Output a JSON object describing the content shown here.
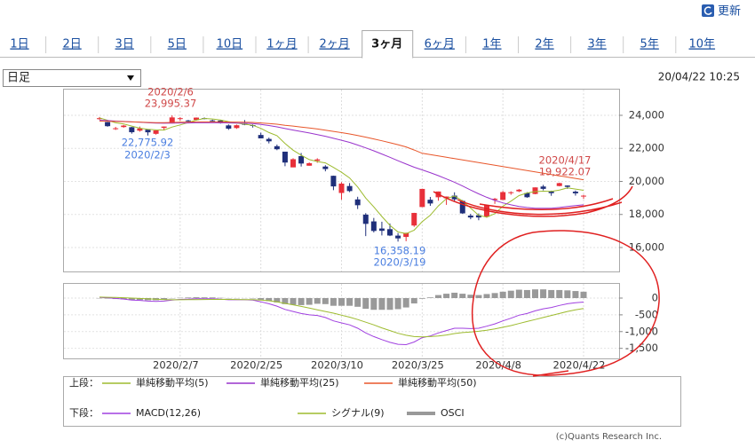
{
  "toolbar": {
    "refresh": "更新"
  },
  "tabs": [
    {
      "label": "1日"
    },
    {
      "label": "2日"
    },
    {
      "label": "3日"
    },
    {
      "label": "5日"
    },
    {
      "label": "10日"
    },
    {
      "label": "1ヶ月"
    },
    {
      "label": "2ヶ月"
    },
    {
      "label": "3ヶ月",
      "selected": true
    },
    {
      "label": "6ヶ月"
    },
    {
      "label": "1年"
    },
    {
      "label": "2年"
    },
    {
      "label": "3年"
    },
    {
      "label": "5年"
    },
    {
      "label": "10年"
    }
  ],
  "period_select": "日足",
  "timestamp": "20/04/22 10:25",
  "chart_data": [
    {
      "type": "candlestick",
      "up_color": "#e8303a",
      "down_color": "#1f2f7a",
      "open": [
        23770,
        23590,
        23180,
        23290,
        23280,
        23070,
        23130,
        22880,
        23240,
        23510,
        23820,
        23690,
        23720,
        23830,
        23690,
        23680,
        23390,
        23230,
        23480,
        23410,
        22810,
        22570,
        22130,
        21800,
        20850,
        21530,
        20950,
        21250,
        20900,
        20340,
        19300,
        19720,
        18910,
        17990,
        17580,
        17150,
        17110,
        16720,
        16640,
        17330,
        18450,
        18890,
        19040,
        18980,
        19140,
        18820,
        17930,
        17950,
        17860,
        18880,
        18880,
        19310,
        19400,
        19300,
        19240,
        19690,
        19390,
        19720,
        19750,
        19380,
        19120
      ],
      "high": [
        23900,
        23600,
        23300,
        23420,
        23300,
        23320,
        23130,
        23090,
        23330,
        23995.37,
        23890,
        23720,
        23870,
        23870,
        23740,
        23700,
        23450,
        23440,
        23710,
        23450,
        22950,
        22650,
        22230,
        21800,
        21400,
        21720,
        21150,
        21400,
        20980,
        20350,
        19950,
        19900,
        19070,
        18080,
        17790,
        17560,
        17450,
        16870,
        16900,
        18100,
        19560,
        19060,
        19390,
        19090,
        19340,
        18870,
        18040,
        18060,
        18600,
        19000,
        19420,
        19400,
        19540,
        19350,
        19640,
        19790,
        19440,
        19922.07,
        19760,
        19450,
        19190
      ],
      "low": [
        23730,
        23310,
        23115,
        23250,
        22890,
        23010,
        22775.92,
        22830,
        23110,
        23510,
        23660,
        23580,
        23680,
        23760,
        23600,
        23500,
        23120,
        23180,
        23400,
        23260,
        22600,
        22300,
        21890,
        20920,
        20850,
        20900,
        20950,
        21130,
        20610,
        19470,
        18890,
        19350,
        18330,
        16690,
        16910,
        16730,
        16690,
        16358.19,
        16380,
        17250,
        18450,
        18520,
        18830,
        18580,
        18800,
        18040,
        17710,
        17650,
        17800,
        18640,
        18880,
        19190,
        19350,
        19010,
        19220,
        19460,
        19130,
        19700,
        19550,
        19140,
        18940
      ],
      "close": [
        23827,
        23343,
        23216,
        23379,
        22977,
        23205,
        22972,
        23085,
        23320,
        23873,
        23828,
        23686,
        23861,
        23828,
        23688,
        23523,
        23194,
        23400,
        23479,
        23386,
        22605,
        22426,
        21948,
        21142,
        21344,
        21082,
        21100,
        21329,
        20749,
        19698,
        19867,
        19416,
        18559,
        17431,
        17002,
        17011,
        16726,
        16552,
        16887,
        18092,
        19546,
        18664,
        19389,
        19084,
        18917,
        18065,
        17818,
        17820,
        18576,
        18950,
        19353,
        19345,
        19498,
        19043,
        19638,
        19550,
        19290,
        19897,
        19669,
        19280,
        19137
      ],
      "series": [
        {
          "name": "単純移動平均(5)",
          "color": "#9dbb2e",
          "values": [
            23850,
            23700,
            23550,
            23480,
            23350,
            23220,
            23150,
            23120,
            23110,
            23290,
            23420,
            23560,
            23710,
            23810,
            23780,
            23720,
            23620,
            23530,
            23460,
            23400,
            23210,
            22960,
            22770,
            22300,
            21890,
            21590,
            21320,
            21200,
            21120,
            20850,
            20550,
            20210,
            19660,
            18990,
            18460,
            17880,
            17340,
            16940,
            16840,
            17050,
            17560,
            17950,
            18520,
            18960,
            19120,
            18820,
            18390,
            17950,
            17840,
            18050,
            18500,
            18810,
            19140,
            19300,
            19380,
            19410,
            19400,
            19480,
            19610,
            19540,
            19460
          ]
        },
        {
          "name": "単純移動平均(25)",
          "color": "#9933cc",
          "values": [
            23700,
            23680,
            23650,
            23630,
            23600,
            23580,
            23550,
            23530,
            23520,
            23530,
            23540,
            23540,
            23550,
            23550,
            23550,
            23550,
            23540,
            23530,
            23520,
            23500,
            23450,
            23380,
            23300,
            23200,
            23110,
            23020,
            22930,
            22830,
            22730,
            22610,
            22490,
            22360,
            22200,
            22030,
            21850,
            21660,
            21460,
            21250,
            21050,
            20860,
            20700,
            20530,
            20350,
            20150,
            19950,
            19720,
            19480,
            19250,
            19040,
            18850,
            18700,
            18580,
            18480,
            18420,
            18380,
            18370,
            18380,
            18420,
            18480,
            18540,
            18580
          ]
        },
        {
          "name": "単純移動平均(50)",
          "color": "#e8562a",
          "values": [
            23650,
            23640,
            23630,
            23620,
            23600,
            23590,
            23570,
            23560,
            23560,
            23570,
            23580,
            23590,
            23600,
            23600,
            23600,
            23600,
            23590,
            23590,
            23580,
            23570,
            23540,
            23500,
            23460,
            23400,
            23350,
            23290,
            23230,
            23170,
            23100,
            23030,
            22950,
            22870,
            22780,
            22680,
            22570,
            22460,
            22340,
            22220,
            22090,
            21900,
            21700,
            21620,
            21540,
            21460,
            21380,
            21300,
            21220,
            21140,
            21060,
            20980,
            20900,
            20820,
            20740,
            20660,
            20580,
            20500,
            20420,
            20340,
            20260,
            20180,
            20100
          ]
        }
      ],
      "ylim": [
        14550,
        25610
      ],
      "yticks": [
        {
          "value": 16000,
          "label": "16,000"
        },
        {
          "value": 18000,
          "label": "18,000"
        },
        {
          "value": 20000,
          "label": "20,000"
        },
        {
          "value": 22000,
          "label": "22,000"
        },
        {
          "value": 24000,
          "label": "24,000"
        }
      ],
      "grid": true,
      "annotations": [
        {
          "date": "2020/2/6",
          "label": "23,995.37",
          "color": "#d04848"
        },
        {
          "date": "2020/2/3",
          "label": "22,775.92",
          "color": "#4a7ee0"
        },
        {
          "date": "2020/3/19",
          "label": "16,358.19",
          "color": "#4a7ee0"
        },
        {
          "date": "2020/4/17",
          "label": "19,922.07",
          "color": "#d04848"
        }
      ]
    },
    {
      "type": "line",
      "categories": [
        null,
        null,
        null,
        null,
        null,
        null,
        null,
        null,
        null,
        null,
        "2020/2/7",
        null,
        null,
        null,
        null,
        null,
        null,
        null,
        null,
        null,
        "2020/2/25",
        null,
        null,
        null,
        null,
        null,
        null,
        null,
        null,
        null,
        "2020/3/10",
        null,
        null,
        null,
        null,
        null,
        null,
        null,
        null,
        null,
        "2020/3/25",
        null,
        null,
        null,
        null,
        null,
        null,
        null,
        null,
        null,
        "2020/4/8",
        null,
        null,
        null,
        null,
        null,
        null,
        null,
        null,
        null,
        "2020/4/22"
      ],
      "series": [
        {
          "name": "MACD(12,26)",
          "color": "#a040e0",
          "values": [
            20,
            10,
            -10,
            -30,
            -60,
            -70,
            -90,
            -100,
            -90,
            -60,
            -40,
            -30,
            -20,
            -20,
            -20,
            -30,
            -50,
            -50,
            -50,
            -60,
            -110,
            -170,
            -240,
            -340,
            -400,
            -460,
            -500,
            -520,
            -580,
            -680,
            -740,
            -800,
            -900,
            -1040,
            -1150,
            -1240,
            -1320,
            -1380,
            -1390,
            -1310,
            -1180,
            -1130,
            -1040,
            -970,
            -900,
            -900,
            -910,
            -900,
            -840,
            -770,
            -680,
            -600,
            -510,
            -460,
            -380,
            -320,
            -280,
            -220,
            -170,
            -140,
            -120
          ]
        },
        {
          "name": "シグナル(9)",
          "color": "#9dbb2e",
          "values": [
            30,
            25,
            18,
            10,
            0,
            -10,
            -25,
            -35,
            -45,
            -50,
            -50,
            -48,
            -45,
            -42,
            -40,
            -38,
            -40,
            -42,
            -44,
            -47,
            -60,
            -80,
            -110,
            -160,
            -200,
            -250,
            -300,
            -350,
            -400,
            -450,
            -510,
            -570,
            -640,
            -720,
            -800,
            -890,
            -970,
            -1050,
            -1110,
            -1150,
            -1160,
            -1150,
            -1130,
            -1100,
            -1060,
            -1030,
            -1010,
            -990,
            -960,
            -920,
            -870,
            -820,
            -760,
            -700,
            -640,
            -580,
            -520,
            -460,
            -400,
            -350,
            -310
          ]
        },
        {
          "name": "OSCI",
          "type": "bar",
          "color": "#999999",
          "values": [
            -10,
            -15,
            -28,
            -40,
            -60,
            -60,
            -65,
            -65,
            -45,
            -10,
            10,
            18,
            25,
            22,
            20,
            8,
            -10,
            -8,
            -6,
            -13,
            -50,
            -90,
            -130,
            -180,
            -200,
            -210,
            -200,
            -170,
            -180,
            -230,
            -230,
            -230,
            -260,
            -320,
            -350,
            -350,
            -350,
            -330,
            -280,
            -160,
            -20,
            20,
            90,
            130,
            160,
            130,
            100,
            90,
            120,
            150,
            190,
            220,
            250,
            240,
            260,
            260,
            240,
            240,
            230,
            210,
            190
          ]
        }
      ],
      "ylim": [
        -1800,
        450
      ],
      "yticks": [
        0,
        -500,
        {
          "value": -1000,
          "label": "-1,000"
        },
        {
          "value": -1500,
          "label": "-1,500"
        }
      ],
      "grid": true
    }
  ],
  "legend": {
    "upper": "上段：",
    "lower": "下段："
  },
  "credit": "(c)Quants Research Inc."
}
